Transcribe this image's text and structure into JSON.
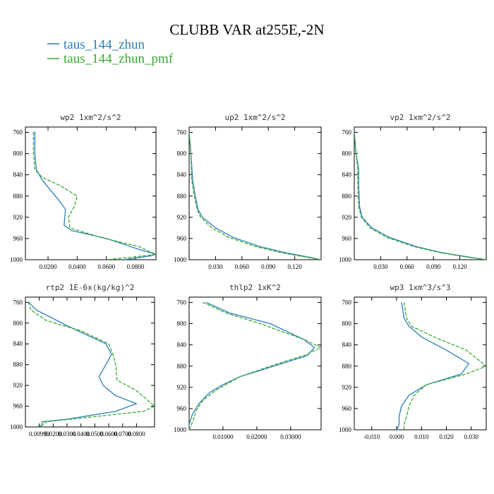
{
  "figure": {
    "title": "CLUBB VAR at255E,-2N",
    "legend": [
      {
        "label": "taus_144_zhun",
        "color": "#2c7fb8"
      },
      {
        "label": "taus_144_zhun_pmf",
        "color": "#3aaa35"
      }
    ]
  },
  "chart_data": [
    {
      "type": "line",
      "title": "wp2  1xm^2/s^2",
      "ylim": [
        1000,
        750
      ],
      "yticks": [
        760,
        800,
        840,
        880,
        920,
        960,
        1000
      ],
      "xlim": [
        0.0045,
        0.094
      ],
      "xticks": [
        0.02,
        0.04,
        0.06,
        0.08
      ],
      "xticklabels": [
        "0.0200",
        "0.0400",
        "0.0600",
        "0.0800"
      ],
      "series": [
        {
          "name": "taus_144_zhun",
          "points": [
            [
              0.011,
              759
            ],
            [
              0.011,
              800
            ],
            [
              0.012,
              830
            ],
            [
              0.016,
              850
            ],
            [
              0.022,
              870
            ],
            [
              0.028,
              890
            ],
            [
              0.032,
              905
            ],
            [
              0.031,
              935
            ],
            [
              0.036,
              945
            ],
            [
              0.06,
              960
            ],
            [
              0.084,
              982
            ],
            [
              0.094,
              990
            ],
            [
              0.09,
              993
            ],
            [
              0.072,
              1000
            ]
          ]
        },
        {
          "name": "taus_144_zhun_pmf",
          "points": [
            [
              0.01,
              759
            ],
            [
              0.01,
              800
            ],
            [
              0.011,
              830
            ],
            [
              0.016,
              845
            ],
            [
              0.028,
              860
            ],
            [
              0.04,
              880
            ],
            [
              0.038,
              900
            ],
            [
              0.034,
              920
            ],
            [
              0.035,
              940
            ],
            [
              0.056,
              958
            ],
            [
              0.082,
              975
            ],
            [
              0.094,
              990
            ],
            [
              0.085,
              993
            ],
            [
              0.06,
              1000
            ]
          ]
        }
      ]
    },
    {
      "type": "line",
      "title": "up2  1xm^2/s^2",
      "ylim": [
        1000,
        750
      ],
      "yticks": [
        760,
        800,
        840,
        880,
        920,
        960,
        1000
      ],
      "xlim": [
        0.0,
        0.15
      ],
      "xticks": [
        0.03,
        0.06,
        0.09,
        0.12
      ],
      "xticklabels": [
        "0.030",
        "0.060",
        "0.090",
        "0.120"
      ],
      "series": [
        {
          "name": "taus_144_zhun",
          "points": [
            [
              0.0,
              759
            ],
            [
              0.002,
              800
            ],
            [
              0.004,
              850
            ],
            [
              0.007,
              880
            ],
            [
              0.01,
              905
            ],
            [
              0.015,
              920
            ],
            [
              0.03,
              940
            ],
            [
              0.05,
              958
            ],
            [
              0.08,
              975
            ],
            [
              0.11,
              987
            ],
            [
              0.135,
              995
            ],
            [
              0.15,
              1000
            ]
          ]
        },
        {
          "name": "taus_144_zhun_pmf",
          "points": [
            [
              0.0,
              759
            ],
            [
              0.002,
              800
            ],
            [
              0.003,
              850
            ],
            [
              0.006,
              880
            ],
            [
              0.009,
              905
            ],
            [
              0.013,
              920
            ],
            [
              0.026,
              940
            ],
            [
              0.045,
              958
            ],
            [
              0.075,
              975
            ],
            [
              0.105,
              987
            ],
            [
              0.132,
              995
            ],
            [
              0.15,
              1000
            ]
          ]
        }
      ]
    },
    {
      "type": "line",
      "title": "vp2  1xm^2/s^2",
      "ylim": [
        1000,
        750
      ],
      "yticks": [
        760,
        800,
        840,
        880,
        920,
        960,
        1000
      ],
      "xlim": [
        0.0,
        0.15
      ],
      "xticks": [
        0.03,
        0.06,
        0.09,
        0.12
      ],
      "xticklabels": [
        "0.030",
        "0.060",
        "0.090",
        "0.120"
      ],
      "series": [
        {
          "name": "taus_144_zhun",
          "points": [
            [
              0.0,
              759
            ],
            [
              0.002,
              800
            ],
            [
              0.005,
              830
            ],
            [
              0.005,
              860
            ],
            [
              0.006,
              900
            ],
            [
              0.009,
              920
            ],
            [
              0.02,
              940
            ],
            [
              0.04,
              958
            ],
            [
              0.07,
              975
            ],
            [
              0.1,
              987
            ],
            [
              0.13,
              995
            ],
            [
              0.15,
              1000
            ]
          ]
        },
        {
          "name": "taus_144_zhun_pmf",
          "points": [
            [
              0.0,
              759
            ],
            [
              0.002,
              800
            ],
            [
              0.004,
              830
            ],
            [
              0.004,
              860
            ],
            [
              0.005,
              900
            ],
            [
              0.008,
              920
            ],
            [
              0.018,
              940
            ],
            [
              0.037,
              958
            ],
            [
              0.067,
              975
            ],
            [
              0.098,
              987
            ],
            [
              0.128,
              995
            ],
            [
              0.15,
              1000
            ]
          ]
        }
      ]
    },
    {
      "type": "line",
      "title": "rtp2  1E-6x(kg/kg)^2",
      "ylim": [
        1000,
        750
      ],
      "yticks": [
        760,
        800,
        840,
        880,
        920,
        960,
        1000
      ],
      "xlim": [
        0.0,
        0.093
      ],
      "xticks": [
        0.01,
        0.02,
        0.03,
        0.04,
        0.05,
        0.06,
        0.07,
        0.08
      ],
      "xticklabels": [
        "0.00999",
        "0.0200",
        "0.0300",
        "0.0400",
        "0.0500",
        "0.0600",
        "0.0700",
        "0.0800"
      ],
      "series": [
        {
          "name": "taus_144_zhun",
          "points": [
            [
              0.002,
              759
            ],
            [
              0.008,
              775
            ],
            [
              0.03,
              805
            ],
            [
              0.05,
              830
            ],
            [
              0.058,
              840
            ],
            [
              0.062,
              860
            ],
            [
              0.058,
              880
            ],
            [
              0.053,
              903
            ],
            [
              0.056,
              920
            ],
            [
              0.065,
              940
            ],
            [
              0.08,
              955
            ],
            [
              0.065,
              970
            ],
            [
              0.03,
              985
            ],
            [
              0.012,
              990
            ],
            [
              0.012,
              997
            ],
            [
              0.008,
              1000
            ]
          ]
        },
        {
          "name": "taus_144_zhun_pmf",
          "points": [
            [
              0.002,
              759
            ],
            [
              0.004,
              775
            ],
            [
              0.015,
              795
            ],
            [
              0.04,
              815
            ],
            [
              0.06,
              840
            ],
            [
              0.063,
              860
            ],
            [
              0.065,
              880
            ],
            [
              0.066,
              910
            ],
            [
              0.08,
              930
            ],
            [
              0.093,
              960
            ],
            [
              0.085,
              970
            ],
            [
              0.04,
              983
            ],
            [
              0.015,
              990
            ],
            [
              0.012,
              997
            ],
            [
              0.008,
              1000
            ]
          ]
        }
      ]
    },
    {
      "type": "line",
      "title": "thlp2  1xK^2",
      "ylim": [
        1000,
        750
      ],
      "yticks": [
        760,
        800,
        840,
        880,
        920,
        960,
        1000
      ],
      "xlim": [
        0.0,
        0.039
      ],
      "xticks": [
        0.01,
        0.02,
        0.03
      ],
      "xticklabels": [
        "0.01000",
        "0.02000",
        "0.03000"
      ],
      "series": [
        {
          "name": "taus_144_zhun",
          "points": [
            [
              0.005,
              760
            ],
            [
              0.012,
              780
            ],
            [
              0.024,
              800
            ],
            [
              0.034,
              830
            ],
            [
              0.037,
              845
            ],
            [
              0.035,
              860
            ],
            [
              0.025,
              880
            ],
            [
              0.015,
              900
            ],
            [
              0.01,
              915
            ],
            [
              0.006,
              930
            ],
            [
              0.003,
              950
            ],
            [
              0.001,
              970
            ],
            [
              0.0,
              990
            ],
            [
              0.0,
              1000
            ]
          ]
        },
        {
          "name": "taus_144_zhun_pmf",
          "points": [
            [
              0.004,
              760
            ],
            [
              0.011,
              780
            ],
            [
              0.021,
              800
            ],
            [
              0.034,
              830
            ],
            [
              0.039,
              845
            ],
            [
              0.034,
              860
            ],
            [
              0.024,
              880
            ],
            [
              0.015,
              900
            ],
            [
              0.008,
              925
            ],
            [
              0.004,
              945
            ],
            [
              0.002,
              965
            ],
            [
              0.001,
              985
            ],
            [
              0.0,
              1000
            ]
          ]
        }
      ]
    },
    {
      "type": "line",
      "title": "wp3  1xm^3/s^3",
      "ylim": [
        1000,
        750
      ],
      "yticks": [
        760,
        800,
        840,
        880,
        920,
        960,
        1000
      ],
      "xlim": [
        -0.017,
        0.036
      ],
      "xticks": [
        -0.01,
        0.0,
        0.01,
        0.02,
        0.03
      ],
      "xticklabels": [
        "-0.010",
        "0.000",
        "0.010",
        "0.020",
        "0.030"
      ],
      "series": [
        {
          "name": "taus_144_zhun",
          "points": [
            [
              0.002,
              760
            ],
            [
              0.003,
              790
            ],
            [
              0.005,
              805
            ],
            [
              0.01,
              825
            ],
            [
              0.02,
              850
            ],
            [
              0.029,
              875
            ],
            [
              0.026,
              895
            ],
            [
              0.012,
              915
            ],
            [
              0.005,
              935
            ],
            [
              0.002,
              955
            ],
            [
              0.001,
              975
            ],
            [
              0.001,
              990
            ],
            [
              0.0,
              1000
            ]
          ]
        },
        {
          "name": "taus_144_zhun_pmf",
          "points": [
            [
              0.003,
              760
            ],
            [
              0.004,
              790
            ],
            [
              0.006,
              805
            ],
            [
              0.015,
              825
            ],
            [
              0.028,
              850
            ],
            [
              0.036,
              880
            ],
            [
              0.028,
              895
            ],
            [
              0.012,
              915
            ],
            [
              0.007,
              935
            ],
            [
              0.005,
              955
            ],
            [
              0.004,
              975
            ],
            [
              0.003,
              990
            ],
            [
              0.003,
              1000
            ]
          ]
        }
      ]
    }
  ]
}
